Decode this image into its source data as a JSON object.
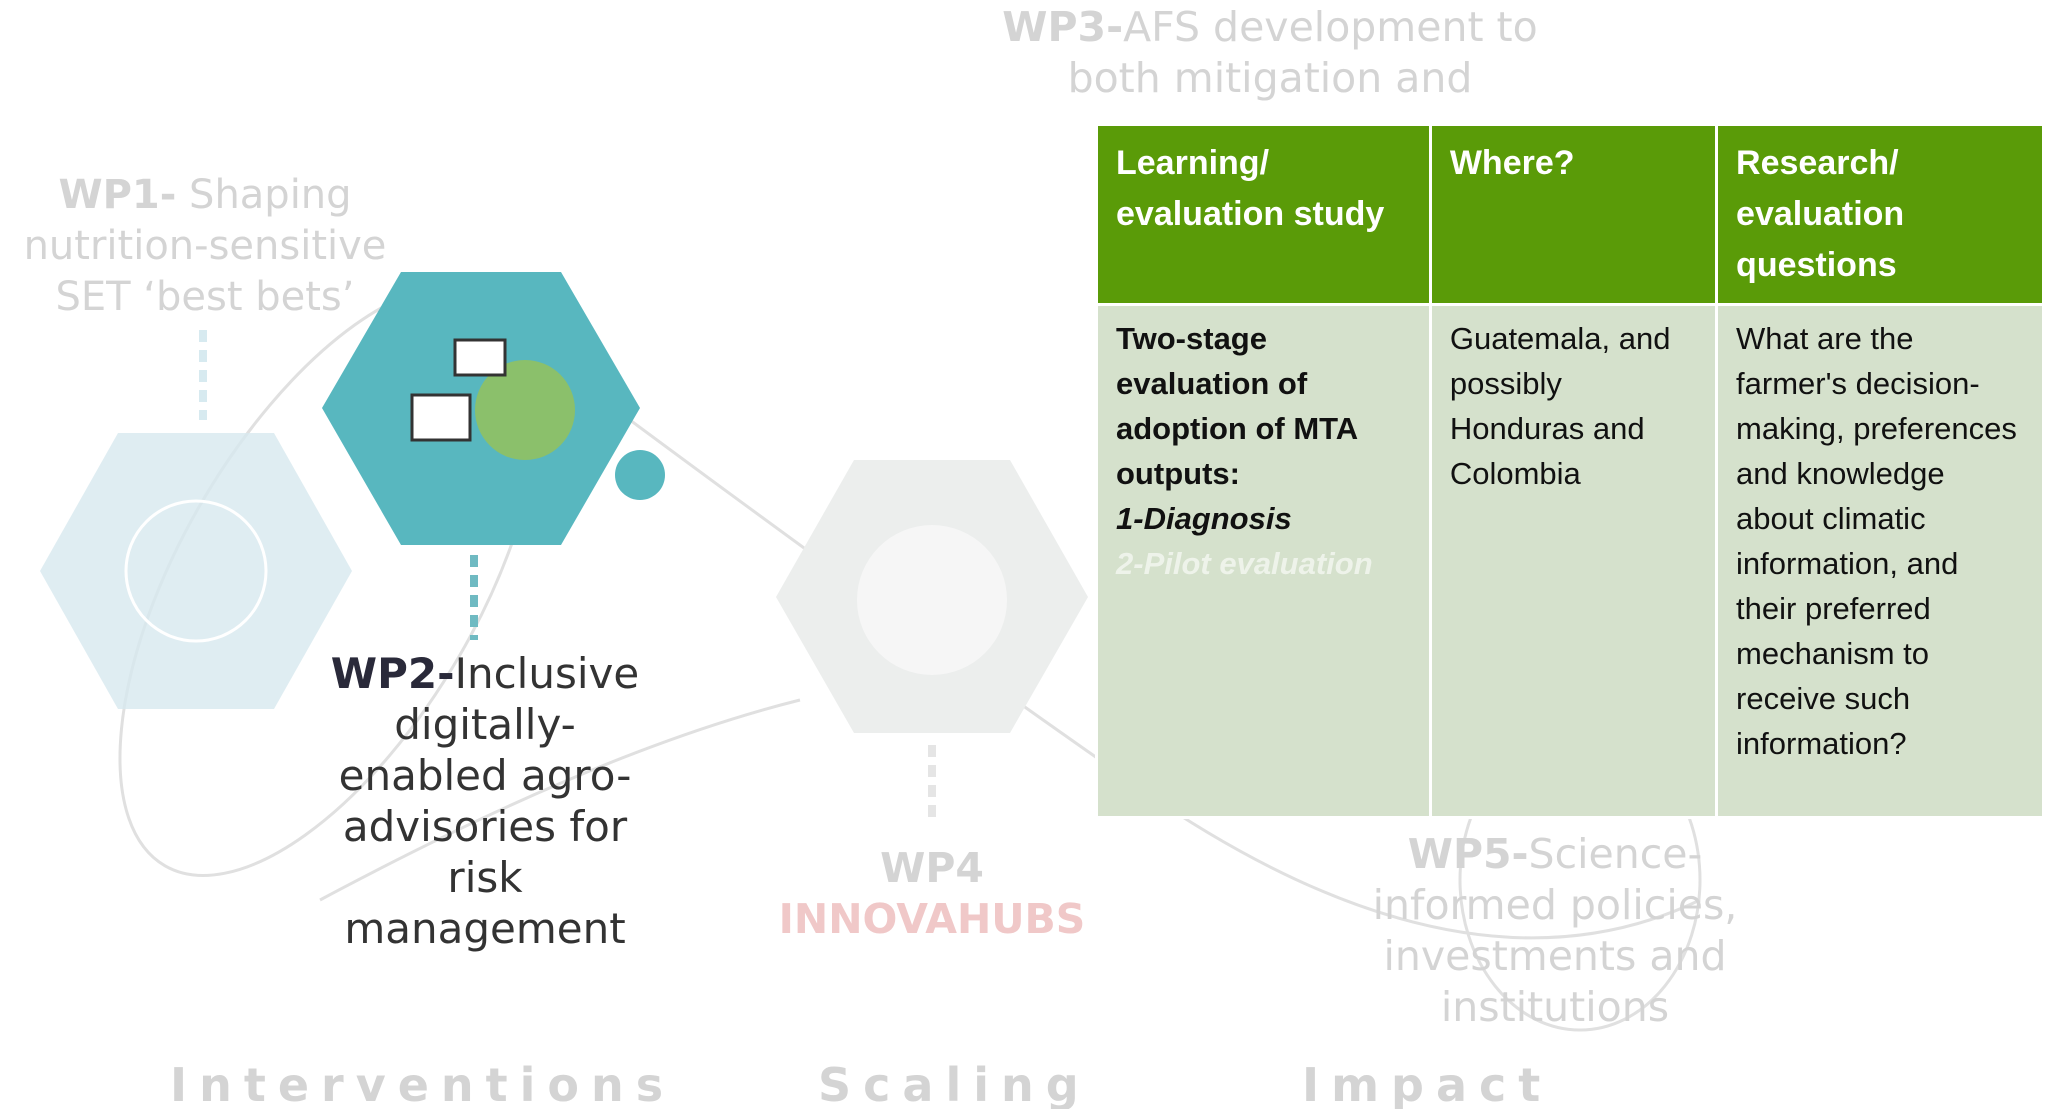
{
  "work_packages": [
    {
      "code": "WP1-",
      "title": "Shaping nutrition-sensitive SET ‘best bets’"
    },
    {
      "code": "WP2-",
      "title": "Inclusive digitally-enabled agro-advisories for risk management"
    },
    {
      "code": "WP3-",
      "title": "AFS development to both mitigation and"
    },
    {
      "code": "WP4",
      "title": "INNOVAHUBS"
    },
    {
      "code": "WP5-",
      "title": "Science-informed policies, investments and institutions"
    }
  ],
  "stages": [
    "Interventions",
    "Scaling",
    "Impact"
  ],
  "table": {
    "headers": [
      "Learning/ evaluation study",
      "Where?",
      "Research/ evaluation questions"
    ],
    "row": {
      "study": {
        "title": "Two-stage evaluation of adoption of MTA outputs:",
        "steps": [
          "1-Diagnosis",
          "2-Pilot evaluation"
        ]
      },
      "where": "Guatemala, and possibly Honduras and Colombia",
      "questions": "What are the farmer's decision-making, preferences and knowledge about climatic information, and their preferred mechanism to receive such information?"
    }
  }
}
